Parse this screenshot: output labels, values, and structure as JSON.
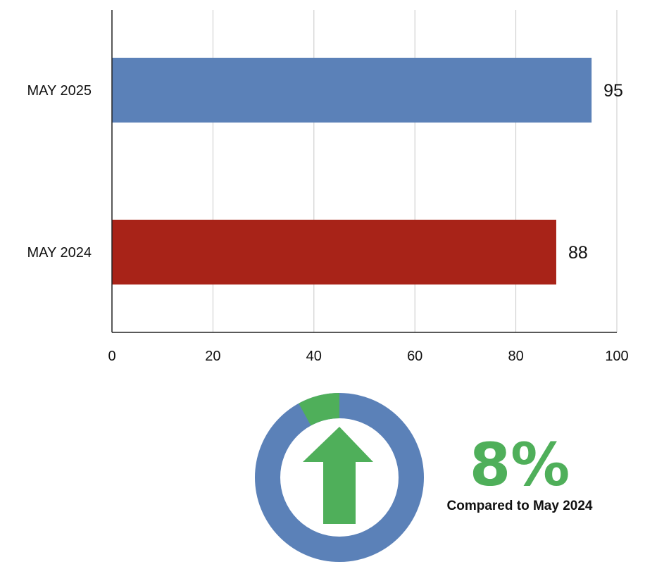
{
  "chart_data": {
    "type": "bar",
    "orientation": "horizontal",
    "categories": [
      "MAY 2025",
      "MAY 2024"
    ],
    "values": [
      95,
      88
    ],
    "colors": [
      "#5b81b8",
      "#a82318"
    ],
    "xlim": [
      0,
      100
    ],
    "xticks": [
      0,
      20,
      40,
      60,
      80,
      100
    ],
    "grid": true,
    "title": "",
    "xlabel": "",
    "ylabel": ""
  },
  "indicator": {
    "type": "donut",
    "change_percent": 8,
    "percent_label": "8%",
    "caption": "Compared to May 2024",
    "direction": "up",
    "icon": "up-arrow-icon",
    "ring_color": "#5b81b8",
    "accent_color": "#4faf5a"
  }
}
